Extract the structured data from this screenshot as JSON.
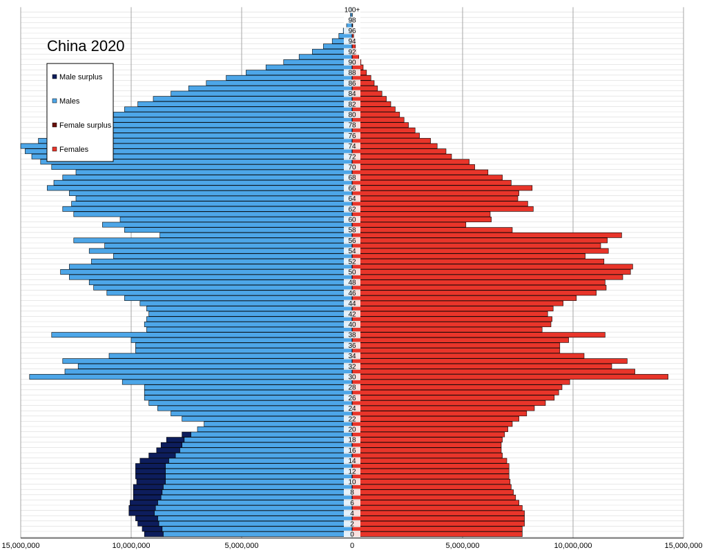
{
  "chart_data": {
    "type": "bar",
    "title": "China 2020",
    "xlabel": "",
    "ylabel": "",
    "xlim": [
      -15000000,
      15000000
    ],
    "x_tick_labels": [
      "15,000,000",
      "10,000,000",
      "5,000,000",
      "0",
      "5,000,000",
      "10,000,000",
      "15,000,000"
    ],
    "x_tick_values": [
      -15000000,
      -10000000,
      -5000000,
      0,
      5000000,
      10000000,
      15000000
    ],
    "y_tick_labels": [
      "0",
      "2",
      "4",
      "6",
      "8",
      "10",
      "12",
      "14",
      "16",
      "18",
      "20",
      "22",
      "24",
      "26",
      "28",
      "30",
      "32",
      "34",
      "36",
      "38",
      "40",
      "42",
      "44",
      "46",
      "48",
      "50",
      "52",
      "54",
      "56",
      "58",
      "60",
      "62",
      "64",
      "66",
      "68",
      "70",
      "72",
      "74",
      "76",
      "78",
      "80",
      "82",
      "84",
      "86",
      "88",
      "90",
      "92",
      "94",
      "96",
      "98",
      "100+"
    ],
    "grid": true,
    "legend_placement": "top-left",
    "legend": [
      {
        "label": "Male surplus",
        "color": "#0d1d5c"
      },
      {
        "label": "Males",
        "color": "#4da6e8"
      },
      {
        "label": "Female surplus",
        "color": "#6a0f0a"
      },
      {
        "label": "Females",
        "color": "#e8352a"
      }
    ],
    "categories": [
      "0",
      "1",
      "2",
      "3",
      "4",
      "5",
      "6",
      "7",
      "8",
      "9",
      "10",
      "11",
      "12",
      "13",
      "14",
      "15",
      "16",
      "17",
      "18",
      "19",
      "20",
      "21",
      "22",
      "23",
      "24",
      "25",
      "26",
      "27",
      "28",
      "29",
      "30",
      "31",
      "32",
      "33",
      "34",
      "35",
      "36",
      "37",
      "38",
      "39",
      "40",
      "41",
      "42",
      "43",
      "44",
      "45",
      "46",
      "47",
      "48",
      "49",
      "50",
      "51",
      "52",
      "53",
      "54",
      "55",
      "56",
      "57",
      "58",
      "59",
      "60",
      "61",
      "62",
      "63",
      "64",
      "65",
      "66",
      "67",
      "68",
      "69",
      "70",
      "71",
      "72",
      "73",
      "74",
      "75",
      "76",
      "77",
      "78",
      "79",
      "80",
      "81",
      "82",
      "83",
      "84",
      "85",
      "86",
      "87",
      "88",
      "89",
      "90",
      "91",
      "92",
      "93",
      "94",
      "95",
      "96",
      "97",
      "98",
      "99",
      "100+"
    ],
    "series": [
      {
        "name": "Males",
        "values": [
          8550000,
          8600000,
          8750000,
          8800000,
          8950000,
          8900000,
          8800000,
          8650000,
          8600000,
          8550000,
          8450000,
          8450000,
          8450000,
          8450000,
          8300000,
          8000000,
          7800000,
          7700000,
          7600000,
          7300000,
          7000000,
          6700000,
          7700000,
          8200000,
          8800000,
          9200000,
          9400000,
          9400000,
          9400000,
          10400000,
          14600000,
          13000000,
          12400000,
          13100000,
          11000000,
          9800000,
          9800000,
          10000000,
          13600000,
          9300000,
          9400000,
          9300000,
          9200000,
          9300000,
          9600000,
          10300000,
          11100000,
          11700000,
          11900000,
          12800000,
          13200000,
          12800000,
          11800000,
          10800000,
          11900000,
          11200000,
          12600000,
          8700000,
          10300000,
          11300000,
          10500000,
          12600000,
          13100000,
          12700000,
          12500000,
          12800000,
          13800000,
          13500000,
          13100000,
          12500000,
          13600000,
          14100000,
          14500000,
          14800000,
          15000000,
          14200000,
          13400000,
          12900000,
          12000000,
          11400000,
          10800000,
          10300000,
          9700000,
          9000000,
          8200000,
          7400000,
          6600000,
          5700000,
          4800000,
          3900000,
          3100000,
          2400000,
          1800000,
          1300000,
          900000,
          600000,
          400000,
          250000,
          150000,
          80000,
          100000
        ]
      },
      {
        "name": "Females",
        "values": [
          7700000,
          7700000,
          7800000,
          7800000,
          7800000,
          7700000,
          7550000,
          7400000,
          7300000,
          7200000,
          7150000,
          7100000,
          7100000,
          7100000,
          7000000,
          6800000,
          6750000,
          6750000,
          6800000,
          6900000,
          7050000,
          7250000,
          7550000,
          7900000,
          8250000,
          8750000,
          9150000,
          9350000,
          9500000,
          9850000,
          14300000,
          12800000,
          11750000,
          12450000,
          10500000,
          9400000,
          9400000,
          9800000,
          11450000,
          8600000,
          9000000,
          9050000,
          8850000,
          9100000,
          9550000,
          10150000,
          11050000,
          11500000,
          11450000,
          12250000,
          12600000,
          12700000,
          11400000,
          10550000,
          11600000,
          11250000,
          11550000,
          12200000,
          7250000,
          5150000,
          6300000,
          6250000,
          8200000,
          7950000,
          7500000,
          7550000,
          8150000,
          7200000,
          6800000,
          6150000,
          5550000,
          5300000,
          4500000,
          4250000,
          3850000,
          3550000,
          3050000,
          2850000,
          2550000,
          2350000,
          2150000,
          1950000,
          1750000,
          1550000,
          1350000,
          1150000,
          1000000,
          850000,
          650000,
          500000,
          400000,
          300000,
          200000,
          150000,
          100000,
          70000,
          50000,
          30000,
          20000,
          10000,
          10000
        ]
      },
      {
        "name": "Male surplus",
        "values": [
          850000,
          900000,
          950000,
          1000000,
          1150000,
          1200000,
          1250000,
          1250000,
          1300000,
          1350000,
          1300000,
          1350000,
          1350000,
          1350000,
          1300000,
          1200000,
          1050000,
          950000,
          800000,
          400000,
          0,
          0,
          0,
          0,
          0,
          0,
          0,
          0,
          0,
          0,
          0,
          0,
          0,
          0,
          0,
          0,
          0,
          0,
          0,
          0,
          0,
          0,
          0,
          0,
          0,
          0,
          0,
          0,
          0,
          0,
          0,
          0,
          0,
          0,
          0,
          0,
          0,
          0,
          0,
          0,
          0,
          0,
          0,
          0,
          0,
          0,
          0,
          0,
          0,
          0,
          0,
          0,
          0,
          0,
          0,
          0,
          0,
          0,
          0,
          0,
          0,
          0,
          0,
          0,
          0,
          0,
          0,
          0,
          0,
          0,
          0,
          0,
          0,
          0,
          0,
          0,
          0,
          0,
          0,
          0,
          0
        ]
      },
      {
        "name": "Female surplus",
        "values": [
          0,
          0,
          0,
          0,
          0,
          0,
          0,
          0,
          0,
          0,
          0,
          0,
          0,
          0,
          0,
          0,
          0,
          0,
          0,
          0,
          0,
          0,
          0,
          0,
          0,
          0,
          0,
          0,
          0,
          0,
          0,
          0,
          0,
          0,
          0,
          0,
          0,
          0,
          0,
          0,
          0,
          0,
          0,
          0,
          0,
          0,
          0,
          0,
          0,
          0,
          0,
          0,
          0,
          0,
          0,
          0,
          0,
          0,
          0,
          0,
          0,
          0,
          0,
          0,
          0,
          0,
          0,
          0,
          0,
          0,
          0,
          0,
          0,
          0,
          0,
          0,
          0,
          0,
          0,
          0,
          0,
          0,
          0,
          0,
          0,
          0,
          0,
          0,
          0,
          0,
          0,
          0,
          0,
          0,
          0,
          0,
          0,
          0,
          0,
          0,
          0
        ]
      }
    ]
  }
}
